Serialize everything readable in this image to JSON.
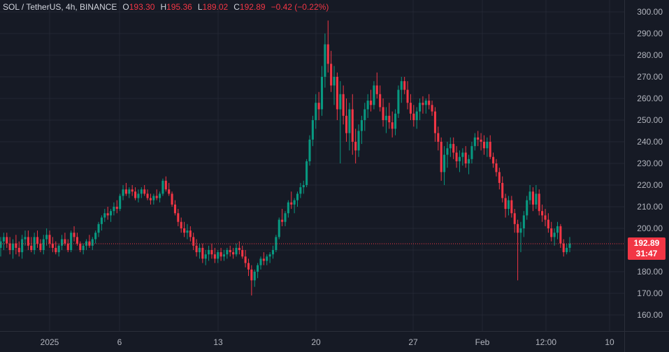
{
  "legend": {
    "symbol": "SOL / TetherUS, 4h, BINANCE",
    "o_label": "O",
    "o_val": "193.30",
    "h_label": "H",
    "h_val": "195.36",
    "l_label": "L",
    "l_val": "189.02",
    "c_label": "C",
    "c_val": "192.89",
    "change": "−0.42 (−0.22%)"
  },
  "last_price": {
    "price": "192.89",
    "countdown": "31:47"
  },
  "colors": {
    "up": "#089981",
    "down": "#f23645",
    "bg": "#161a25",
    "grid": "#232733",
    "text": "#b2b5be"
  },
  "chart_data": {
    "type": "candlestick",
    "y_axis": {
      "range": [
        150,
        305
      ],
      "ticks": [
        "160.00",
        "170.00",
        "180.00",
        "190.00",
        "200.00",
        "210.00",
        "220.00",
        "230.00",
        "240.00",
        "250.00",
        "260.00",
        "270.00",
        "280.00",
        "290.00",
        "300.00"
      ]
    },
    "x_axis": {
      "ticks": [
        "2025",
        "6",
        "13",
        "20",
        "27",
        "Feb",
        "12:00",
        "10"
      ]
    },
    "grid": true,
    "ohlc": [
      [
        191,
        196,
        187,
        194
      ],
      [
        194,
        198,
        190,
        196
      ],
      [
        196,
        198,
        191,
        193
      ],
      [
        193,
        196,
        188,
        190
      ],
      [
        190,
        195,
        186,
        193
      ],
      [
        193,
        197,
        188,
        191
      ],
      [
        191,
        194,
        187,
        189
      ],
      [
        189,
        197,
        186,
        195
      ],
      [
        195,
        199,
        192,
        196
      ],
      [
        196,
        199,
        190,
        192
      ],
      [
        192,
        196,
        189,
        190
      ],
      [
        190,
        198,
        188,
        196
      ],
      [
        196,
        199,
        191,
        193
      ],
      [
        193,
        195,
        189,
        190
      ],
      [
        190,
        197,
        188,
        195
      ],
      [
        195,
        200,
        192,
        197
      ],
      [
        197,
        199,
        191,
        193
      ],
      [
        193,
        196,
        189,
        191
      ],
      [
        191,
        194,
        188,
        189
      ],
      [
        189,
        193,
        187,
        192
      ],
      [
        192,
        197,
        190,
        195
      ],
      [
        195,
        198,
        192,
        193
      ],
      [
        193,
        195,
        189,
        190
      ],
      [
        190,
        199,
        189,
        198
      ],
      [
        198,
        201,
        194,
        196
      ],
      [
        196,
        198,
        192,
        193
      ],
      [
        193,
        194,
        189,
        190
      ],
      [
        190,
        193,
        188,
        192
      ],
      [
        192,
        195,
        190,
        194
      ],
      [
        194,
        197,
        191,
        192
      ],
      [
        192,
        196,
        190,
        195
      ],
      [
        195,
        199,
        193,
        198
      ],
      [
        198,
        203,
        196,
        202
      ],
      [
        202,
        206,
        199,
        205
      ],
      [
        205,
        209,
        203,
        207
      ],
      [
        207,
        210,
        204,
        206
      ],
      [
        206,
        209,
        203,
        208
      ],
      [
        208,
        212,
        206,
        210
      ],
      [
        210,
        213,
        207,
        209
      ],
      [
        209,
        216,
        208,
        215
      ],
      [
        215,
        220,
        213,
        218
      ],
      [
        218,
        221,
        215,
        216
      ],
      [
        216,
        219,
        214,
        218
      ],
      [
        218,
        220,
        215,
        217
      ],
      [
        217,
        219,
        213,
        214
      ],
      [
        214,
        218,
        212,
        216
      ],
      [
        216,
        219,
        214,
        218
      ],
      [
        218,
        220,
        215,
        216
      ],
      [
        216,
        218,
        213,
        214
      ],
      [
        214,
        216,
        211,
        213
      ],
      [
        213,
        216,
        211,
        215
      ],
      [
        215,
        218,
        213,
        214
      ],
      [
        214,
        217,
        212,
        216
      ],
      [
        216,
        223,
        215,
        222
      ],
      [
        222,
        224,
        217,
        218
      ],
      [
        218,
        221,
        215,
        216
      ],
      [
        216,
        217,
        210,
        211
      ],
      [
        211,
        213,
        206,
        207
      ],
      [
        207,
        209,
        201,
        203
      ],
      [
        203,
        205,
        198,
        200
      ],
      [
        200,
        203,
        196,
        198
      ],
      [
        198,
        202,
        195,
        199
      ],
      [
        199,
        201,
        194,
        196
      ],
      [
        196,
        198,
        190,
        192
      ],
      [
        192,
        195,
        187,
        189
      ],
      [
        189,
        193,
        186,
        191
      ],
      [
        191,
        193,
        184,
        186
      ],
      [
        186,
        190,
        183,
        188
      ],
      [
        188,
        192,
        185,
        190
      ],
      [
        190,
        193,
        186,
        188
      ],
      [
        188,
        191,
        184,
        186
      ],
      [
        186,
        190,
        184,
        189
      ],
      [
        189,
        191,
        185,
        187
      ],
      [
        187,
        190,
        185,
        188
      ],
      [
        188,
        191,
        186,
        190
      ],
      [
        190,
        192,
        187,
        189
      ],
      [
        189,
        191,
        186,
        188
      ],
      [
        188,
        193,
        187,
        191
      ],
      [
        191,
        194,
        188,
        190
      ],
      [
        190,
        192,
        186,
        187
      ],
      [
        187,
        190,
        182,
        184
      ],
      [
        184,
        186,
        178,
        181
      ],
      [
        181,
        183,
        169,
        176
      ],
      [
        176,
        181,
        173,
        180
      ],
      [
        180,
        184,
        177,
        183
      ],
      [
        183,
        187,
        181,
        186
      ],
      [
        186,
        189,
        183,
        185
      ],
      [
        185,
        188,
        183,
        187
      ],
      [
        187,
        189,
        184,
        188
      ],
      [
        188,
        192,
        186,
        190
      ],
      [
        190,
        197,
        189,
        196
      ],
      [
        196,
        205,
        195,
        204
      ],
      [
        204,
        209,
        201,
        203
      ],
      [
        203,
        208,
        201,
        207
      ],
      [
        207,
        213,
        205,
        212
      ],
      [
        212,
        217,
        209,
        211
      ],
      [
        211,
        214,
        207,
        213
      ],
      [
        213,
        217,
        210,
        216
      ],
      [
        216,
        221,
        214,
        219
      ],
      [
        219,
        222,
        216,
        220
      ],
      [
        220,
        232,
        219,
        231
      ],
      [
        231,
        243,
        229,
        241
      ],
      [
        241,
        252,
        238,
        250
      ],
      [
        250,
        262,
        246,
        258
      ],
      [
        258,
        263,
        250,
        255
      ],
      [
        255,
        275,
        252,
        270
      ],
      [
        270,
        290,
        265,
        285
      ],
      [
        285,
        296,
        272,
        276
      ],
      [
        276,
        282,
        263,
        266
      ],
      [
        266,
        275,
        257,
        270
      ],
      [
        270,
        272,
        250,
        255
      ],
      [
        255,
        268,
        230,
        262
      ],
      [
        262,
        266,
        248,
        252
      ],
      [
        252,
        260,
        240,
        244
      ],
      [
        244,
        258,
        236,
        255
      ],
      [
        255,
        262,
        234,
        240
      ],
      [
        240,
        246,
        230,
        236
      ],
      [
        236,
        248,
        233,
        245
      ],
      [
        245,
        252,
        239,
        250
      ],
      [
        250,
        258,
        245,
        255
      ],
      [
        255,
        262,
        251,
        259
      ],
      [
        259,
        264,
        254,
        257
      ],
      [
        257,
        268,
        255,
        266
      ],
      [
        266,
        272,
        260,
        262
      ],
      [
        262,
        266,
        254,
        256
      ],
      [
        256,
        260,
        247,
        250
      ],
      [
        250,
        256,
        244,
        252
      ],
      [
        252,
        258,
        246,
        249
      ],
      [
        249,
        254,
        242,
        246
      ],
      [
        246,
        255,
        243,
        253
      ],
      [
        253,
        266,
        251,
        264
      ],
      [
        264,
        270,
        258,
        268
      ],
      [
        268,
        270,
        262,
        264
      ],
      [
        264,
        268,
        255,
        258
      ],
      [
        258,
        262,
        250,
        253
      ],
      [
        253,
        257,
        247,
        250
      ],
      [
        250,
        256,
        246,
        254
      ],
      [
        254,
        260,
        250,
        258
      ],
      [
        258,
        261,
        253,
        257
      ],
      [
        257,
        260,
        253,
        259
      ],
      [
        259,
        262,
        255,
        257
      ],
      [
        257,
        259,
        252,
        254
      ],
      [
        254,
        256,
        240,
        244
      ],
      [
        244,
        247,
        236,
        240
      ],
      [
        240,
        242,
        222,
        226
      ],
      [
        226,
        238,
        220,
        234
      ],
      [
        234,
        240,
        228,
        237
      ],
      [
        237,
        242,
        233,
        239
      ],
      [
        239,
        242,
        232,
        235
      ],
      [
        235,
        238,
        228,
        231
      ],
      [
        231,
        236,
        226,
        233
      ],
      [
        233,
        237,
        229,
        235
      ],
      [
        235,
        238,
        228,
        230
      ],
      [
        230,
        234,
        225,
        232
      ],
      [
        232,
        240,
        230,
        238
      ],
      [
        238,
        244,
        236,
        242
      ],
      [
        242,
        245,
        238,
        241
      ],
      [
        241,
        244,
        236,
        240
      ],
      [
        240,
        243,
        234,
        237
      ],
      [
        237,
        242,
        233,
        240
      ],
      [
        240,
        243,
        232,
        233
      ],
      [
        233,
        235,
        228,
        230
      ],
      [
        230,
        232,
        224,
        226
      ],
      [
        226,
        228,
        218,
        221
      ],
      [
        221,
        224,
        212,
        214
      ],
      [
        214,
        216,
        205,
        209
      ],
      [
        209,
        215,
        206,
        213
      ],
      [
        213,
        215,
        205,
        207
      ],
      [
        207,
        209,
        198,
        202
      ],
      [
        202,
        204,
        176,
        198
      ],
      [
        198,
        203,
        189,
        200
      ],
      [
        200,
        208,
        196,
        206
      ],
      [
        206,
        215,
        204,
        213
      ],
      [
        213,
        220,
        211,
        217
      ],
      [
        217,
        219,
        208,
        211
      ],
      [
        211,
        220,
        209,
        216
      ],
      [
        216,
        218,
        206,
        208
      ],
      [
        208,
        211,
        203,
        206
      ],
      [
        206,
        209,
        201,
        204
      ],
      [
        204,
        207,
        198,
        200
      ],
      [
        200,
        203,
        194,
        196
      ],
      [
        196,
        200,
        192,
        198
      ],
      [
        198,
        203,
        195,
        201
      ],
      [
        201,
        202,
        191,
        193
      ],
      [
        193,
        195,
        187,
        189
      ],
      [
        189,
        193,
        188,
        191
      ],
      [
        191,
        196,
        189,
        193
      ]
    ]
  }
}
